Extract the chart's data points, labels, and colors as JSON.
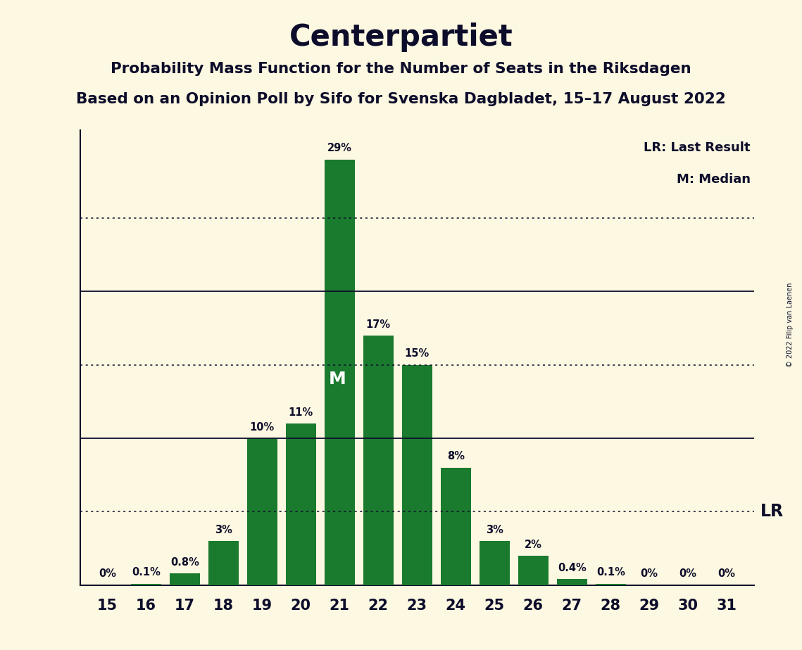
{
  "title": "Centerpartiet",
  "subtitle1": "Probability Mass Function for the Number of Seats in the Riksdagen",
  "subtitle2": "Based on an Opinion Poll by Sifo for Svenska Dagbladet, 15–17 August 2022",
  "copyright": "© 2022 Filip van Laenen",
  "seats": [
    15,
    16,
    17,
    18,
    19,
    20,
    21,
    22,
    23,
    24,
    25,
    26,
    27,
    28,
    29,
    30,
    31
  ],
  "probabilities": [
    0.0,
    0.1,
    0.8,
    3.0,
    10.0,
    11.0,
    29.0,
    17.0,
    15.0,
    8.0,
    3.0,
    2.0,
    0.4,
    0.1,
    0.0,
    0.0,
    0.0
  ],
  "bar_color": "#1a7a2e",
  "background_color": "#fdf8e1",
  "text_color": "#0d0d2b",
  "lr_seat": 27,
  "median_seat": 21,
  "ylim_max": 31,
  "solid_gridlines": [
    10,
    20
  ],
  "dotted_gridlines": [
    5,
    15,
    25
  ],
  "ylabel_ticks": [
    10,
    20
  ],
  "legend_lr": "LR: Last Result",
  "legend_m": "M: Median",
  "lr_label": "LR"
}
